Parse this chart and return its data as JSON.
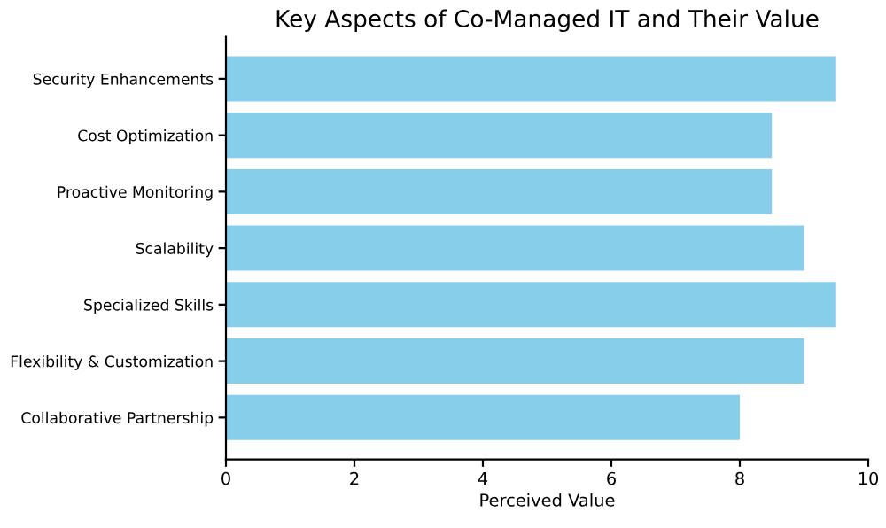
{
  "chart_data": {
    "type": "bar",
    "orientation": "horizontal",
    "title": "Key Aspects of Co-Managed IT and Their Value",
    "xlabel": "Perceived Value",
    "categories": [
      "Security Enhancements",
      "Cost Optimization",
      "Proactive Monitoring",
      "Scalability",
      "Specialized Skills",
      "Flexibility & Customization",
      "Collaborative Partnership"
    ],
    "values": [
      9.5,
      8.5,
      8.5,
      9,
      9.5,
      9,
      8
    ],
    "color": "#87ceeb",
    "xlim": [
      0,
      10
    ],
    "xticks": [
      0,
      2,
      4,
      6,
      8,
      10
    ],
    "grid": false
  }
}
